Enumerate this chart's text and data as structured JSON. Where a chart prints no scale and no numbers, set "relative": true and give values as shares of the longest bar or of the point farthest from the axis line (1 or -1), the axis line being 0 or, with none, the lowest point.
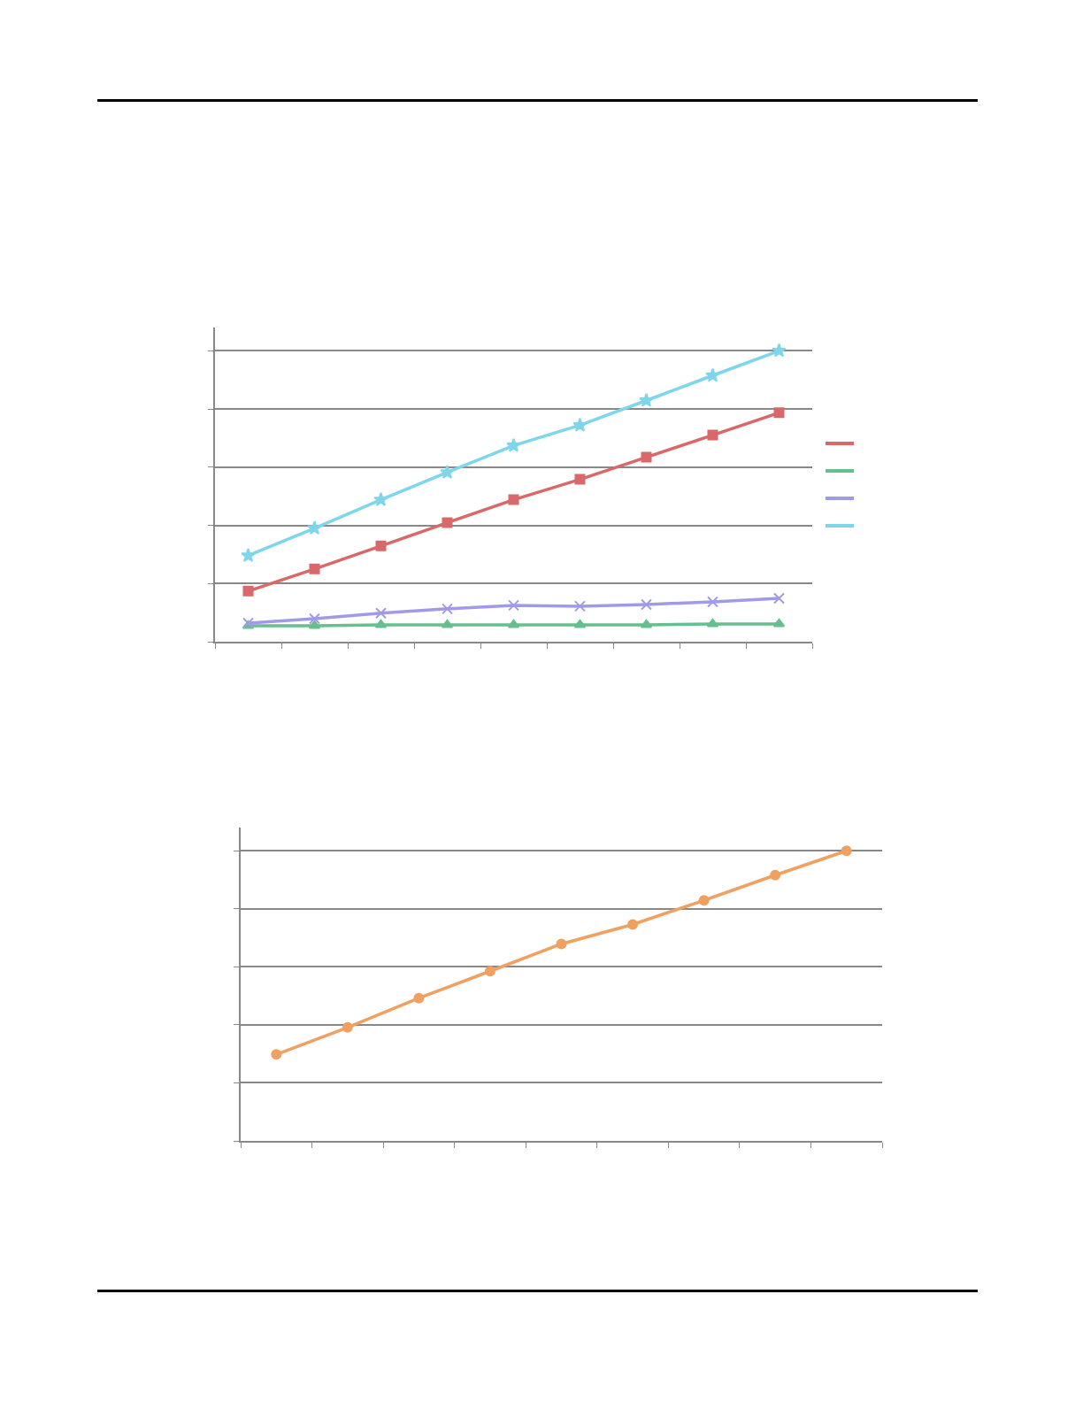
{
  "chart_data": [
    {
      "type": "line",
      "relative": true,
      "categories": [
        null,
        null,
        null,
        null,
        null,
        null,
        null,
        null,
        null
      ],
      "grid": "y",
      "line_style": "solid",
      "series": [
        {
          "color": "#d9686a",
          "marker": "square",
          "values": [
            0.174,
            0.25,
            0.329,
            0.409,
            0.488,
            0.558,
            0.634,
            0.71,
            0.787
          ]
        },
        {
          "color": "#66bf8e",
          "marker": "triangle",
          "values": [
            0.055,
            0.055,
            0.058,
            0.058,
            0.058,
            0.058,
            0.058,
            0.061,
            0.061
          ]
        },
        {
          "color": "#a09ae8",
          "marker": "cross",
          "values": [
            0.064,
            0.079,
            0.098,
            0.113,
            0.125,
            0.122,
            0.128,
            0.137,
            0.149
          ]
        },
        {
          "color": "#7fd6ea",
          "marker": "star",
          "values": [
            0.296,
            0.39,
            0.488,
            0.582,
            0.674,
            0.744,
            0.829,
            0.915,
            1
          ]
        }
      ]
    },
    {
      "type": "line",
      "relative": true,
      "categories": [
        null,
        null,
        null,
        null,
        null,
        null,
        null,
        null,
        null
      ],
      "grid": "y",
      "line_style": "solid",
      "series": [
        {
          "color": "#f0a060",
          "marker": "circle",
          "values": [
            0.298,
            0.391,
            0.492,
            0.585,
            0.679,
            0.746,
            0.829,
            0.916,
            1
          ]
        }
      ]
    }
  ]
}
